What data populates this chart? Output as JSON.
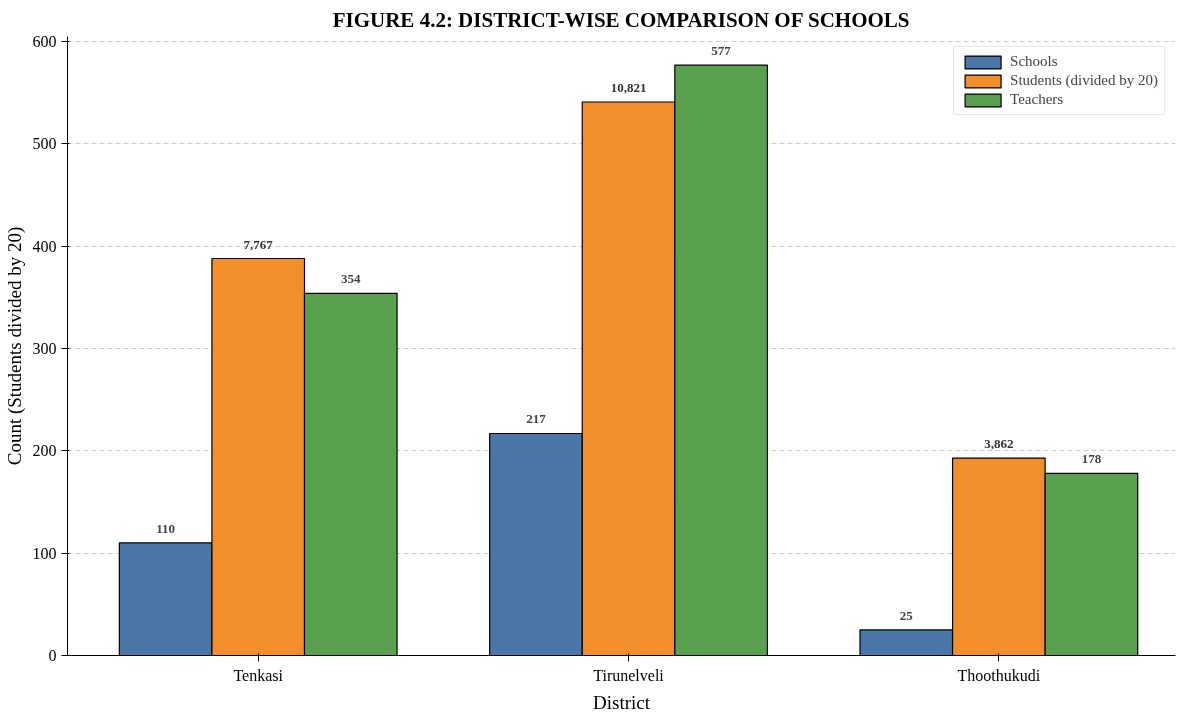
{
  "chart_data": {
    "type": "bar",
    "title": "FIGURE 4.2: DISTRICT-WISE COMPARISON OF SCHOOLS",
    "xlabel": "District",
    "ylabel": "Count (Students divided by 20)",
    "categories": [
      "Tenkasi",
      "Tirunelveli",
      "Thoothukudi"
    ],
    "series": [
      {
        "name": "Schools",
        "color": "#4a76a8",
        "values": [
          110,
          217,
          25
        ],
        "value_labels": [
          "110",
          "217",
          "25"
        ]
      },
      {
        "name": "Students (divided by 20)",
        "color": "#f28e2b",
        "values": [
          388,
          541,
          193
        ]
      },
      {
        "name": "Teachers",
        "color": "#59a14f",
        "values": [
          354,
          577,
          178
        ],
        "value_labels": [
          "354",
          "577",
          "178"
        ]
      }
    ],
    "annotations": [
      {
        "text": "7,767",
        "x": "Tenkasi",
        "y": 388
      },
      {
        "text": "10,821",
        "x": "Tirunelveli",
        "y": 541
      },
      {
        "text": "3,862",
        "x": "Thoothukudi",
        "y": 193
      }
    ],
    "ylim": [
      0,
      605
    ],
    "yticks": [
      0,
      100,
      200,
      300,
      400,
      500,
      600
    ],
    "grid": "y",
    "legend": "top right"
  }
}
